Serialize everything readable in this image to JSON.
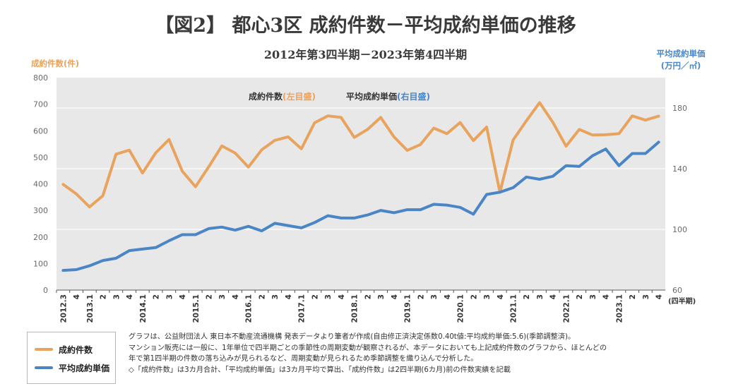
{
  "header": {
    "title": "【図2】 都心3区 成約件数－平均成約単価の推移",
    "subtitle": "2012年第3四半期－2023年第4四半期"
  },
  "colors": {
    "orange": "#e8a35f",
    "blue": "#4a86c5",
    "plot_bg": "#e8e8e8",
    "axis_text": "#6a6a6a"
  },
  "legend": {
    "orange_label": "成約件数",
    "blue_label": "平均成約単価"
  },
  "notes": [
    "グラフは、公益財団法人 東日本不動産流通機構 発表データより筆者が作成(自由修正済決定係数0.40t値:平均成約単価:5.6)(季節調整済)。",
    "マンション販売には一般に、1年単位で四半期ごとの季節性の周期変動が観察されるが、本データにおいても上記成約件数のグラフから、ほとんどの",
    "年で第1四半期の件数の落ち込みが見られるなど、周期変動が見られるため季節調整を織り込んで分析した。",
    "◇「成約件数」は3カ月合計、「平均成約単価」は3カ月平均で算出、「成約件数」は2四半期(6カ月)前の件数実績を記載"
  ],
  "chart_data": {
    "type": "line",
    "x_label": "(四半期)",
    "left_axis": {
      "label": "成約件数(件)",
      "ylim": [
        0,
        800
      ],
      "ticks": [
        0,
        100,
        200,
        300,
        400,
        500,
        600,
        700,
        800
      ]
    },
    "right_axis": {
      "label_line1": "平均成約単価",
      "label_line2": "(万円／㎡)",
      "ylim": [
        60,
        200
      ],
      "ticks": [
        60,
        100,
        140,
        180
      ]
    },
    "in_plot_legend": {
      "orange_name": "成約件数",
      "orange_note": "(左目盛)",
      "blue_name": "平均成約単価",
      "blue_note": "(右目盛)"
    },
    "categories": [
      "2012.3",
      "4",
      "2013.1",
      "2",
      "3",
      "4",
      "2014.1",
      "2",
      "3",
      "4",
      "2015.1",
      "2",
      "3",
      "4",
      "2016.1",
      "2",
      "3",
      "4",
      "2017.1",
      "2",
      "3",
      "4",
      "2018.1",
      "2",
      "3",
      "4",
      "2019.1",
      "2",
      "3",
      "4",
      "2020.1",
      "2",
      "3",
      "4",
      "2021.1",
      "2",
      "3",
      "4",
      "2022.1",
      "2",
      "3",
      "4",
      "2023.1",
      "2",
      "3",
      "4"
    ],
    "series": [
      {
        "name": "成約件数",
        "axis": "left",
        "color": "#e8a35f",
        "values": [
          398,
          362,
          313,
          355,
          512,
          527,
          441,
          517,
          567,
          448,
          389,
          464,
          543,
          516,
          463,
          528,
          564,
          577,
          532,
          630,
          656,
          650,
          575,
          605,
          650,
          577,
          526,
          548,
          610,
          589,
          631,
          563,
          614,
          368,
          565,
          637,
          706,
          632,
          542,
          605,
          584,
          585,
          589,
          656,
          640,
          655
        ]
      },
      {
        "name": "平均成約単価",
        "axis": "right",
        "color": "#4a86c5",
        "values": [
          73,
          73.5,
          76,
          79.5,
          81,
          86,
          87,
          88,
          92.5,
          96.5,
          96.5,
          100.5,
          101.5,
          99.5,
          102,
          99,
          104,
          102.5,
          101,
          104.5,
          109,
          107.5,
          107.5,
          109.5,
          112.5,
          111,
          113,
          113,
          116.5,
          116,
          114.5,
          110,
          123,
          124.5,
          127.5,
          134.5,
          133,
          135,
          142,
          141.5,
          148.5,
          153,
          142,
          150,
          150,
          157.5
        ]
      }
    ]
  }
}
